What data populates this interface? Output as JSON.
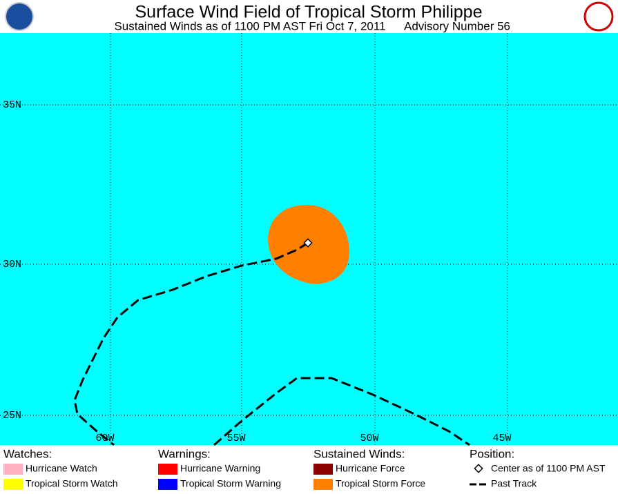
{
  "header": {
    "title": "Surface Wind Field of Tropical Storm Philippe",
    "subtitle": "Sustained Winds as of 1100 PM AST Fri Oct 7, 2011",
    "advisory": "Advisory Number 56"
  },
  "map": {
    "lat_labels": [
      "35N",
      "30N",
      "25N"
    ],
    "lon_labels": [
      "60W",
      "55W",
      "50W",
      "45W"
    ]
  },
  "legend": {
    "sections": [
      {
        "title": "Watches:",
        "items": [
          "Hurricane Watch",
          "Tropical Storm Watch"
        ]
      },
      {
        "title": "Warnings:",
        "items": [
          "Hurricane Warning",
          "Tropical Storm Warning"
        ]
      },
      {
        "title": "Sustained Winds:",
        "items": [
          "Hurricane Force",
          "Tropical Storm Force"
        ]
      },
      {
        "title": "Position:",
        "items": [
          "Center as of 1100 PM AST",
          "Past Track"
        ]
      }
    ]
  }
}
